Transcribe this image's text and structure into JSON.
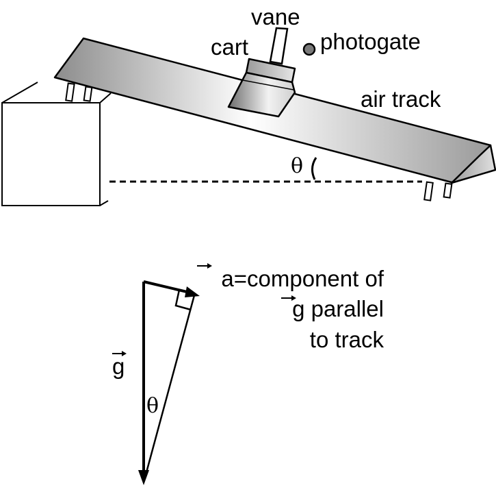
{
  "labels": {
    "vane": "vane",
    "photogate": "photogate",
    "cart": "cart",
    "air_track": "air track",
    "theta_track": "θ",
    "a_symbol": "a",
    "a_desc": "=component of",
    "g_symbol_right": "g",
    "g_desc": " parallel",
    "line3": "to track",
    "g_symbol_left": "g",
    "theta_triangle": "θ"
  },
  "colors": {
    "stroke": "#000000",
    "track_dark": "#8c8c8c",
    "track_light": "#ffffff",
    "cart_dark": "#6e6e6e",
    "cart_light": "#f2f2f2",
    "photogate": "#7a7a7a"
  }
}
